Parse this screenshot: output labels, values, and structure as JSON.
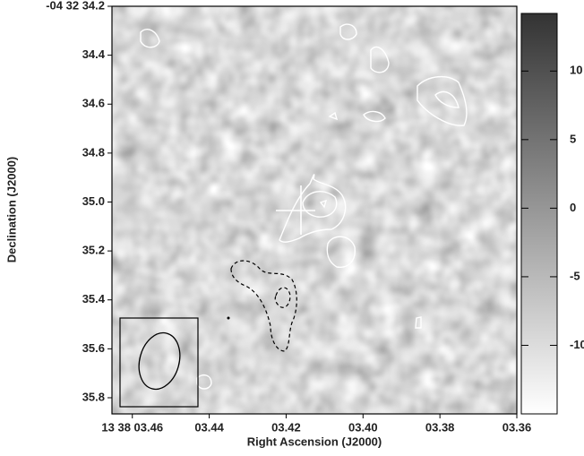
{
  "chart_data": {
    "type": "image",
    "xlabel": "Right Ascension (J2000)",
    "ylabel": "Declination (J2000)",
    "xlim": [
      3.4653,
      3.36
    ],
    "xticks": [
      {
        "value": 3.46,
        "label": "13 38 03.46"
      },
      {
        "value": 3.44,
        "label": "03.44"
      },
      {
        "value": 3.42,
        "label": "03.42"
      },
      {
        "value": 3.4,
        "label": "03.40"
      },
      {
        "value": 3.38,
        "label": "03.38"
      },
      {
        "value": 3.36,
        "label": "03.36"
      }
    ],
    "ylim": [
      34.2,
      35.866
    ],
    "yticks": [
      {
        "value": 34.2,
        "label": "-04 32 34.2"
      },
      34.4,
      34.6,
      34.8,
      {
        "value": 35.0,
        "label": "35.0"
      },
      35.2,
      35.4,
      35.6,
      35.8
    ],
    "colorbar": {
      "lim": [
        -15,
        14.2
      ],
      "ticks": [
        10,
        5,
        0,
        -5,
        -10
      ]
    }
  }
}
